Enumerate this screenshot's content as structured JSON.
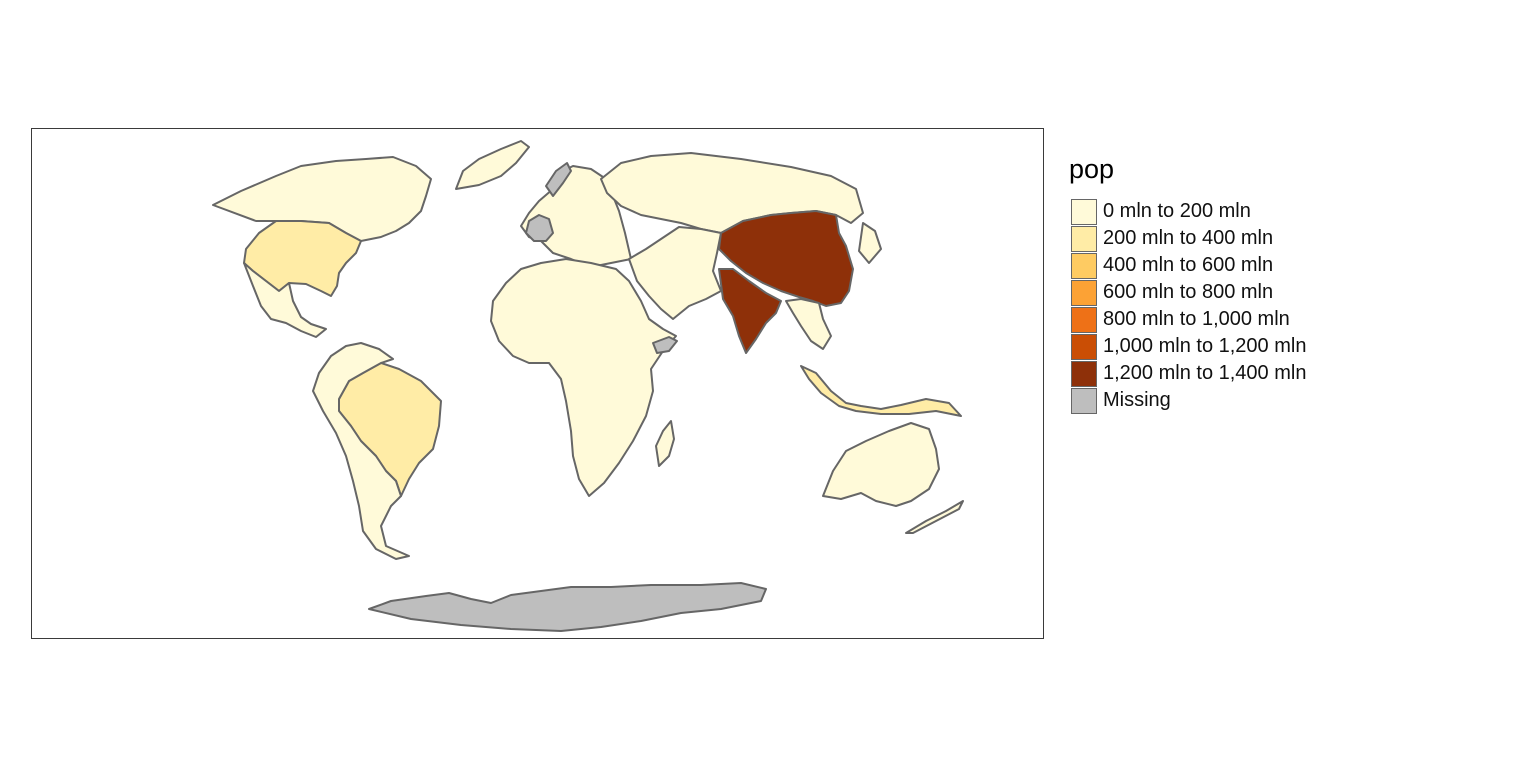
{
  "map": {
    "title": "",
    "variable": "pop",
    "projection": "world equal-area",
    "border_color": "#666666"
  },
  "legend": {
    "title": "pop",
    "items": [
      {
        "label": "0 mln to 200 mln",
        "color": "#FFFAD9"
      },
      {
        "label": "200 mln to 400 mln",
        "color": "#FFECA6"
      },
      {
        "label": "400 mln to 600 mln",
        "color": "#FECB62"
      },
      {
        "label": "600 mln to 800 mln",
        "color": "#FCA235"
      },
      {
        "label": "800 mln to 1,000 mln",
        "color": "#EE7117"
      },
      {
        "label": "1,000 mln to 1,200 mln",
        "color": "#CA4E05"
      },
      {
        "label": "1,200 mln to 1,400 mln",
        "color": "#8E3009"
      },
      {
        "label": "Missing",
        "color": "#BEBEBE"
      }
    ]
  },
  "regions": [
    {
      "name": "Canada",
      "class": "0 mln to 200 mln"
    },
    {
      "name": "United States",
      "class": "200 mln to 400 mln"
    },
    {
      "name": "Greenland",
      "class": "0 mln to 200 mln"
    },
    {
      "name": "Mexico",
      "class": "0 mln to 200 mln"
    },
    {
      "name": "Brazil",
      "class": "200 mln to 400 mln"
    },
    {
      "name": "South America (other)",
      "class": "0 mln to 200 mln"
    },
    {
      "name": "Europe",
      "class": "0 mln to 200 mln"
    },
    {
      "name": "France",
      "class": "Missing"
    },
    {
      "name": "Norway",
      "class": "Missing"
    },
    {
      "name": "Russia",
      "class": "0 mln to 200 mln"
    },
    {
      "name": "Africa",
      "class": "0 mln to 200 mln"
    },
    {
      "name": "Somaliland",
      "class": "Missing"
    },
    {
      "name": "Madagascar",
      "class": "0 mln to 200 mln"
    },
    {
      "name": "Middle East & Central Asia",
      "class": "0 mln to 200 mln"
    },
    {
      "name": "China",
      "class": "1,200 mln to 1,400 mln"
    },
    {
      "name": "India",
      "class": "1,200 mln to 1,400 mln"
    },
    {
      "name": "Southeast Asia",
      "class": "0 mln to 200 mln"
    },
    {
      "name": "Indonesia",
      "class": "200 mln to 400 mln"
    },
    {
      "name": "Japan",
      "class": "0 mln to 200 mln"
    },
    {
      "name": "Australia",
      "class": "0 mln to 200 mln"
    },
    {
      "name": "New Zealand",
      "class": "0 mln to 200 mln"
    },
    {
      "name": "Antarctica",
      "class": "Missing"
    }
  ]
}
